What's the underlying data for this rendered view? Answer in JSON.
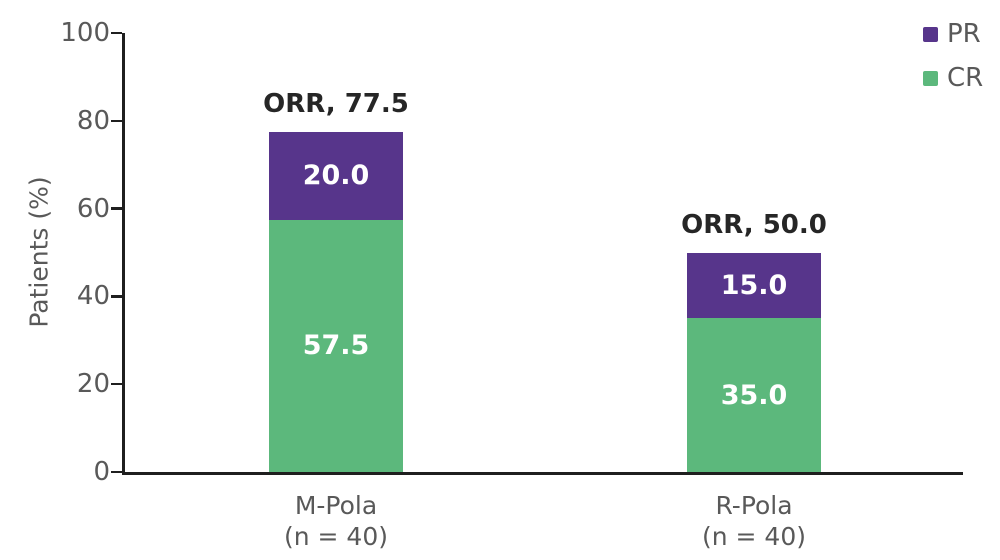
{
  "chart_data": {
    "type": "bar",
    "stacked": true,
    "title": "",
    "xlabel": "",
    "ylabel": "Patients (%)",
    "ylim": [
      0,
      100
    ],
    "yticks": [
      0,
      20,
      40,
      60,
      80,
      100
    ],
    "grid": false,
    "categories": [
      "M-Pola",
      "R-Pola"
    ],
    "category_sublabels": [
      "(n = 40)",
      "(n = 40)"
    ],
    "series": [
      {
        "name": "CR",
        "color": "#5cb87c",
        "values": [
          57.5,
          35.0
        ],
        "value_labels": [
          "57.5",
          "35.0"
        ]
      },
      {
        "name": "PR",
        "color": "#57358b",
        "values": [
          20.0,
          15.0
        ],
        "value_labels": [
          "20.0",
          "15.0"
        ]
      }
    ],
    "totals": [
      {
        "label": "ORR, 77.5",
        "value": 77.5
      },
      {
        "label": "ORR, 50.0",
        "value": 50.0
      }
    ],
    "legend_position": "top-right",
    "legend": [
      {
        "label": "PR",
        "color": "#57358b"
      },
      {
        "label": "CR",
        "color": "#5cb87c"
      }
    ]
  },
  "colors": {
    "background": "#ffffff",
    "axis": "#1f1f1f",
    "axis_text": "#595959",
    "orr_text": "#262626",
    "value_text": "#ffffff"
  }
}
